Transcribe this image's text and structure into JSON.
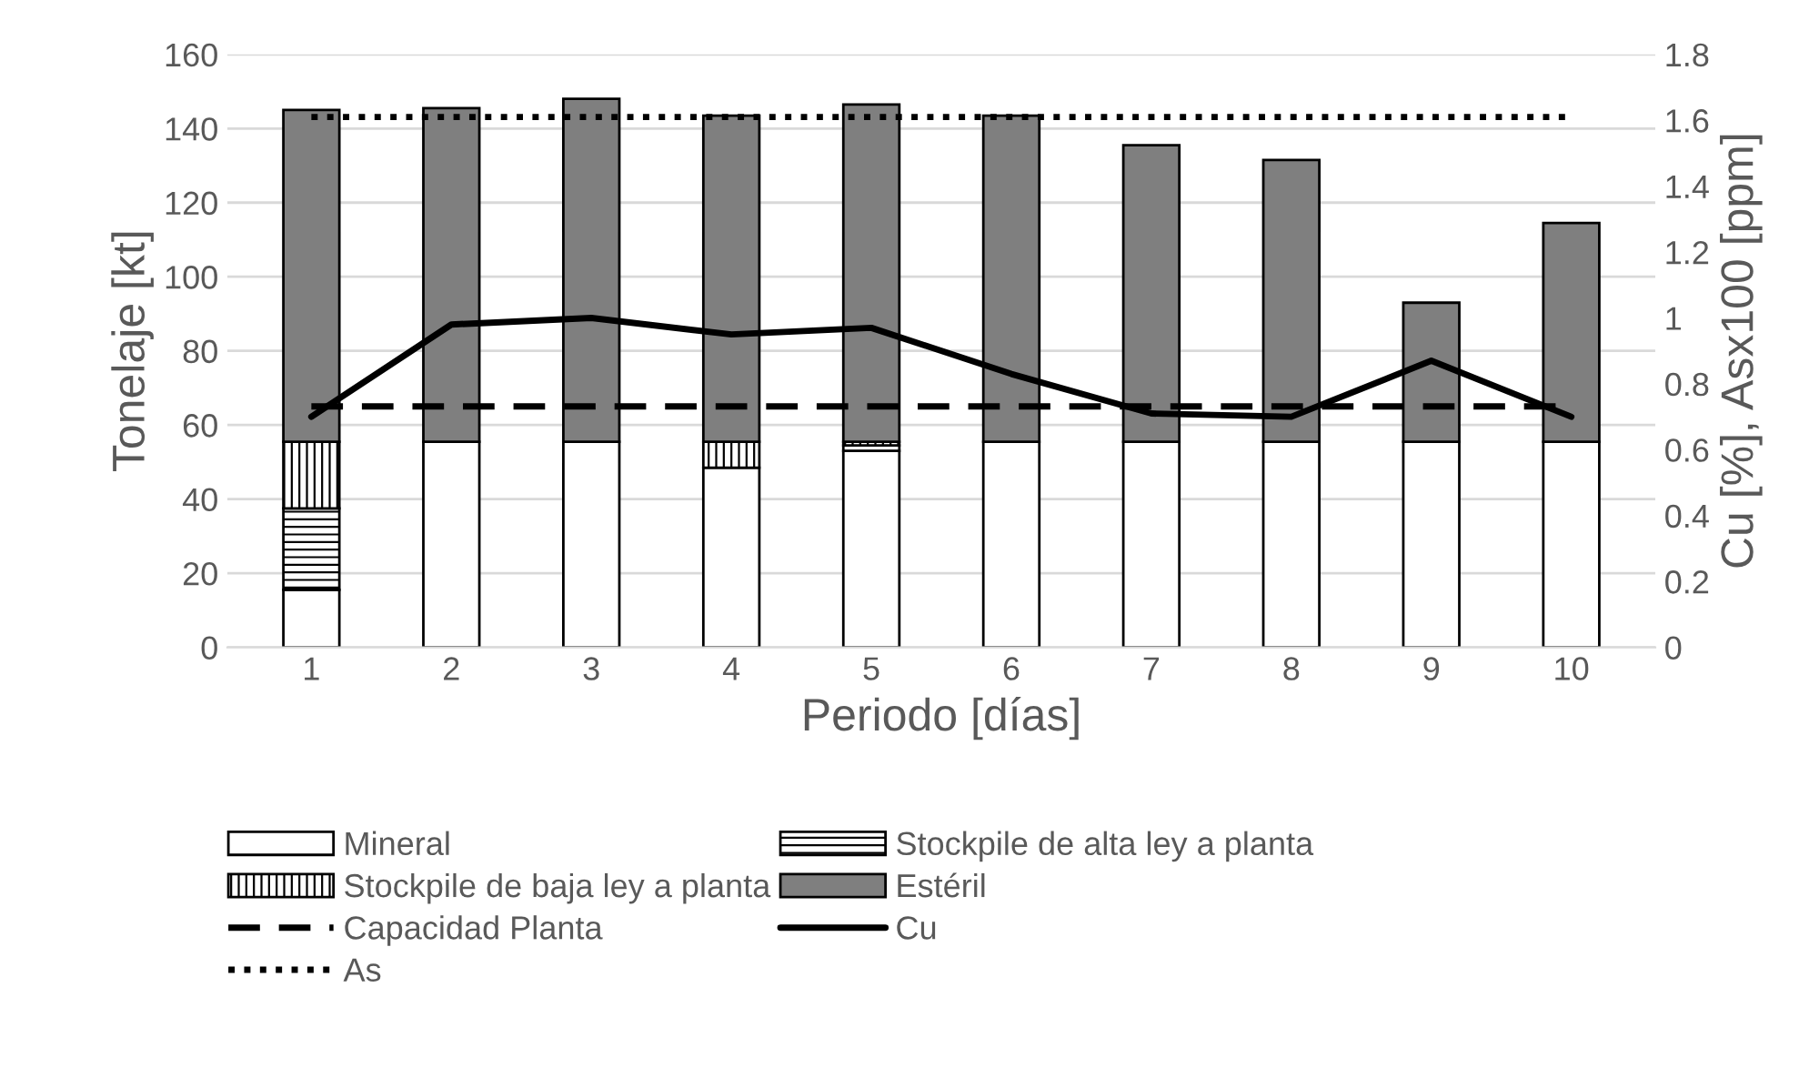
{
  "chart_data": {
    "type": "bar",
    "stacked": true,
    "xlabel": "Periodo [días]",
    "ylabel": "Tonelaje [kt]",
    "y2label": "Cu [%], Asx100 [ppm]",
    "categories": [
      "1",
      "2",
      "3",
      "4",
      "5",
      "6",
      "7",
      "8",
      "9",
      "10"
    ],
    "series": [
      {
        "name": "Mineral",
        "color": "#ffffff",
        "values": [
          15.5,
          55.5,
          55.5,
          48.5,
          53,
          55.5,
          55.5,
          55.5,
          55.5,
          55.5
        ]
      },
      {
        "name": "Stockpile de alta ley a planta",
        "color": "#ffffff",
        "values": [
          22,
          null,
          null,
          null,
          1.5,
          null,
          null,
          null,
          null,
          null
        ]
      },
      {
        "name": "Stockpile de baja ley a planta",
        "color": "#ffffff",
        "values": [
          18,
          null,
          null,
          7,
          1,
          null,
          null,
          null,
          null,
          null
        ]
      },
      {
        "name": "Estéril",
        "color": "#7f7f7f",
        "values": [
          89.5,
          90,
          92.5,
          88,
          91,
          88,
          80,
          76,
          37.5,
          59
        ]
      },
      {
        "name": "Capacidad Planta",
        "type": "line",
        "line_style": "dashed",
        "color": "#000000",
        "values": [
          65,
          65,
          65,
          65,
          65,
          65,
          65,
          65,
          65,
          65
        ]
      },
      {
        "name": "Cu",
        "type": "line",
        "line_style": "solid",
        "axis": "y2",
        "color": "#000000",
        "values": [
          0.7,
          0.98,
          1.0,
          0.95,
          0.97,
          0.83,
          0.71,
          0.7,
          0.87,
          0.7
        ]
      },
      {
        "name": "As",
        "type": "line",
        "line_style": "dotted",
        "axis": "y2",
        "color": "#000000",
        "values": [
          1.61,
          1.61,
          1.61,
          1.61,
          1.61,
          1.61,
          1.61,
          1.61,
          1.61,
          1.61
        ]
      }
    ],
    "ylim": [
      0,
      160
    ],
    "yticks": [
      0,
      20,
      40,
      60,
      80,
      100,
      120,
      140,
      160
    ],
    "y2lim": [
      0,
      1.8
    ],
    "y2ticks": [
      0,
      {
        "value": 0.2,
        "label": "0.2"
      },
      {
        "value": 0.4,
        "label": "0.4"
      },
      {
        "value": 0.6,
        "label": "0.6"
      },
      {
        "value": 0.8,
        "label": "0.8"
      },
      1,
      {
        "value": 1.2,
        "label": "1.2"
      },
      {
        "value": 1.4,
        "label": "1.4"
      },
      {
        "value": 1.6,
        "label": "1.6"
      },
      {
        "value": 1.8,
        "label": "1.8"
      }
    ],
    "grid": "y",
    "legend": "bottom"
  }
}
